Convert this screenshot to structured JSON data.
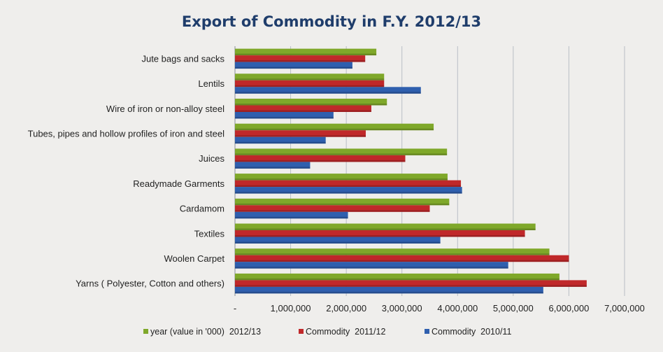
{
  "chart_data": {
    "type": "bar",
    "orientation": "horizontal",
    "title": "Export of Commodity in F.Y. 2012/13",
    "xlabel": "",
    "ylabel": "",
    "xlim": [
      0,
      7000000
    ],
    "x_ticks": [
      "-",
      "1,000,000",
      "2,000,000",
      "3,000,000",
      "4,000,000",
      "5,000,000",
      "6,000,000",
      "7,000,000"
    ],
    "grid": true,
    "legend_position": "bottom",
    "categories": [
      "Jute bags and sacks",
      "Lentils",
      "Wire of iron or non-alloy steel",
      "Tubes, pipes and hollow profiles of iron and steel",
      "Juices",
      "Readymade Garments",
      "Cardamom",
      "Textiles",
      "Woolen Carpet",
      "Yarns ( Polyester, Cotton and others)"
    ],
    "series": [
      {
        "name": "year (value in '000)  2012/13",
        "color": "#7fa82a",
        "values": [
          2540000,
          2680000,
          2730000,
          3570000,
          3810000,
          3820000,
          3850000,
          5400000,
          5650000,
          5830000
        ]
      },
      {
        "name": "Commodity  2011/12",
        "color": "#c0282a",
        "values": [
          2340000,
          2680000,
          2450000,
          2350000,
          3060000,
          4060000,
          3500000,
          5210000,
          6000000,
          6320000
        ]
      },
      {
        "name": "Commodity  2010/11",
        "color": "#2f5fae",
        "values": [
          2110000,
          3340000,
          1770000,
          1630000,
          1350000,
          4080000,
          2030000,
          3690000,
          4910000,
          5540000
        ]
      }
    ]
  }
}
